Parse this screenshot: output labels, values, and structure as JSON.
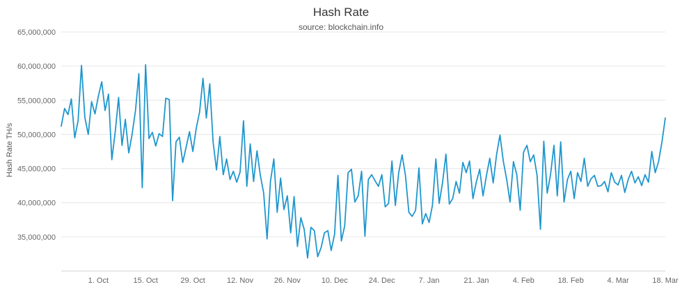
{
  "chart_data": {
    "type": "line",
    "title": "Hash Rate",
    "subtitle": "source: blockchain.info",
    "ylabel": "Hash Rate TH/s",
    "xlabel": "",
    "line_color": "#1f96cd",
    "grid_color": "#e6e6e6",
    "axis_line_color": "#ccd0d6",
    "tick_label_color": "#666666",
    "legend": false,
    "grid": true,
    "ylim": [
      30000000,
      65000000
    ],
    "y_ticks": [
      {
        "value": 65000000,
        "label": "65,000,000"
      },
      {
        "value": 60000000,
        "label": "60,000,000"
      },
      {
        "value": 55000000,
        "label": "55,000,000"
      },
      {
        "value": 50000000,
        "label": "50,000,000"
      },
      {
        "value": 45000000,
        "label": "45,000,000"
      },
      {
        "value": 40000000,
        "label": "40,000,000"
      },
      {
        "value": 35000000,
        "label": "35,000,000"
      }
    ],
    "x_ticks": [
      {
        "index": 11,
        "label": "1. Oct"
      },
      {
        "index": 25,
        "label": "15. Oct"
      },
      {
        "index": 39,
        "label": "29. Oct"
      },
      {
        "index": 53,
        "label": "12. Nov"
      },
      {
        "index": 67,
        "label": "26. Nov"
      },
      {
        "index": 81,
        "label": "10. Dec"
      },
      {
        "index": 95,
        "label": "24. Dec"
      },
      {
        "index": 109,
        "label": "7. Jan"
      },
      {
        "index": 123,
        "label": "21. Jan"
      },
      {
        "index": 137,
        "label": "4. Feb"
      },
      {
        "index": 151,
        "label": "18. Feb"
      },
      {
        "index": 165,
        "label": "4. Mar"
      },
      {
        "index": 179,
        "label": "18. Mar"
      }
    ],
    "values": [
      51200000,
      53800000,
      52900000,
      55200000,
      49500000,
      52000000,
      60100000,
      52500000,
      50000000,
      54800000,
      53000000,
      55600000,
      57700000,
      53500000,
      55900000,
      46300000,
      50400000,
      55400000,
      48400000,
      52200000,
      47300000,
      50000000,
      53500000,
      58900000,
      42200000,
      60200000,
      49400000,
      50300000,
      48300000,
      50100000,
      49700000,
      55300000,
      55100000,
      40300000,
      48900000,
      49600000,
      45900000,
      48100000,
      50400000,
      47500000,
      50900000,
      53300000,
      58200000,
      52400000,
      57400000,
      48900000,
      44800000,
      49700000,
      44100000,
      46400000,
      43400000,
      44600000,
      43000000,
      44500000,
      52000000,
      42400000,
      48600000,
      43100000,
      47600000,
      44000000,
      41400000,
      34700000,
      43100000,
      46400000,
      38600000,
      43600000,
      39000000,
      41000000,
      35600000,
      40900000,
      33600000,
      37800000,
      36100000,
      31900000,
      36400000,
      35900000,
      32100000,
      33400000,
      35600000,
      35900000,
      33000000,
      35400000,
      44000000,
      34400000,
      36600000,
      44400000,
      44900000,
      40100000,
      41000000,
      44600000,
      35100000,
      43400000,
      44100000,
      43200000,
      42400000,
      44100000,
      39400000,
      39900000,
      46100000,
      39600000,
      44400000,
      47000000,
      44000000,
      38600000,
      38000000,
      38900000,
      45100000,
      36900000,
      38400000,
      37100000,
      39600000,
      46400000,
      39900000,
      43000000,
      47100000,
      39800000,
      40600000,
      43100000,
      41400000,
      45900000,
      44400000,
      46100000,
      40600000,
      43000000,
      44900000,
      41000000,
      44000000,
      46500000,
      42900000,
      47000000,
      49900000,
      46100000,
      43400000,
      40100000,
      46000000,
      44100000,
      38900000,
      47400000,
      48400000,
      46000000,
      47000000,
      44000000,
      36100000,
      49000000,
      41400000,
      44100000,
      48400000,
      41000000,
      48900000,
      40100000,
      43400000,
      44600000,
      40600000,
      44400000,
      43100000,
      46500000,
      42400000,
      43500000,
      44000000,
      42400000,
      42500000,
      43100000,
      41600000,
      44400000,
      43000000,
      42600000,
      44000000,
      41500000,
      43400000,
      44600000,
      42900000,
      43800000,
      42500000,
      44100000,
      43000000,
      47500000,
      44400000,
      46000000,
      48900000,
      52400000
    ]
  }
}
